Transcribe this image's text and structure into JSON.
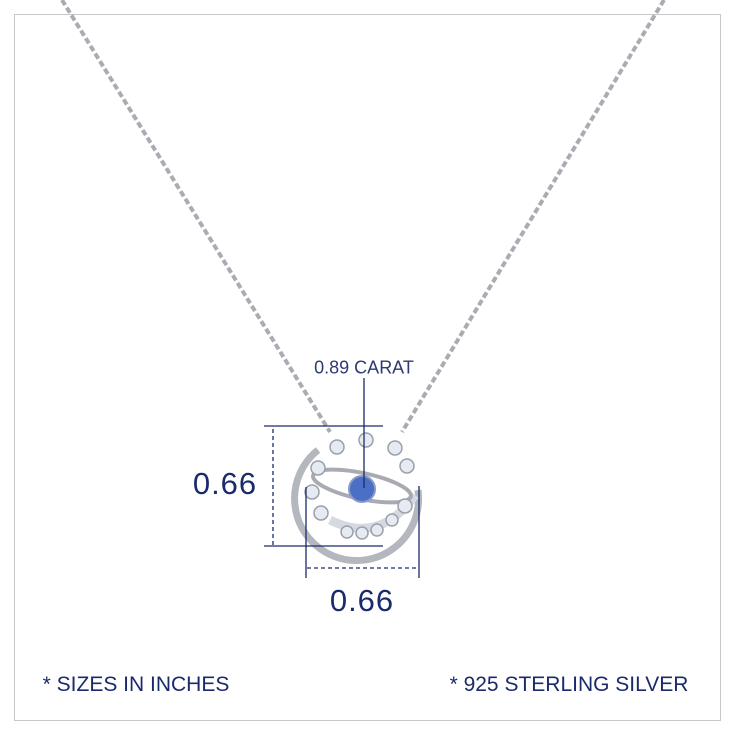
{
  "product": {
    "stone_weight": "0.89 CARAT",
    "height": "0.66",
    "width": "0.66",
    "sizes_note": "* SIZES IN INCHES",
    "material_note": "* 925 STERLING SILVER"
  },
  "colors": {
    "text": "#1b2a6b",
    "metal": "#b8bcc2",
    "stone": "#4a6fc4",
    "frame": "#c8c8c8"
  }
}
